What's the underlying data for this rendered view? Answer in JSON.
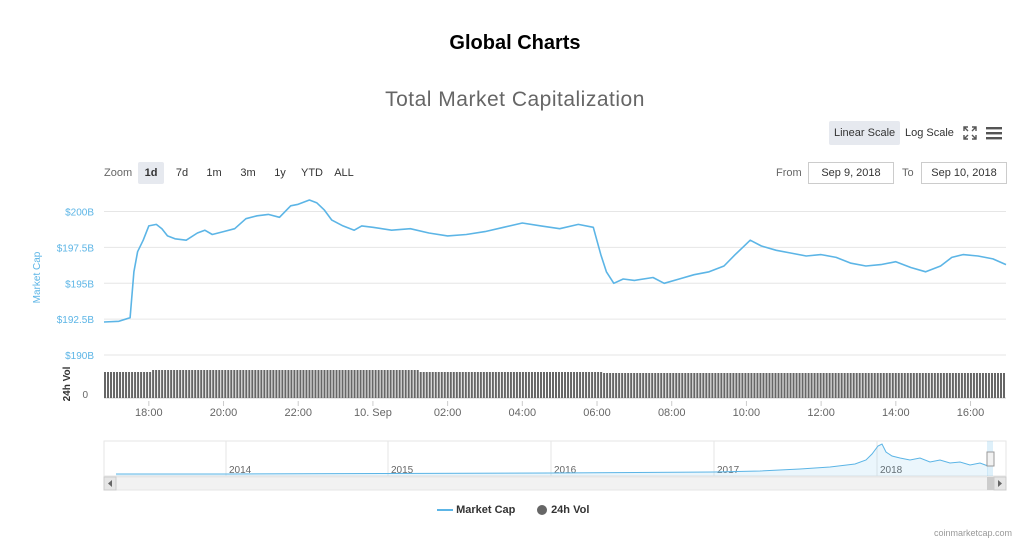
{
  "page_title": "Global Charts",
  "chart_title": "Total Market Capitalization",
  "scale": {
    "linear_label": "Linear Scale",
    "log_label": "Log Scale"
  },
  "zoom": {
    "label": "Zoom",
    "buttons": [
      {
        "label": "1d",
        "active": true
      },
      {
        "label": "7d",
        "active": false
      },
      {
        "label": "1m",
        "active": false
      },
      {
        "label": "3m",
        "active": false
      },
      {
        "label": "1y",
        "active": false
      },
      {
        "label": "YTD",
        "active": false
      },
      {
        "label": "ALL",
        "active": false
      }
    ]
  },
  "range": {
    "from_label": "From",
    "from_value": "Sep 9, 2018",
    "to_label": "To",
    "to_value": "Sep 10, 2018"
  },
  "legend": {
    "market_cap": "Market Cap",
    "volume": "24h Vol"
  },
  "credit": "coinmarketcap.com",
  "colors": {
    "market_cap": "#5cb5e6",
    "volume": "#666666",
    "button_active": "#e6e9ef"
  },
  "icons": {
    "fullscreen": "fullscreen-icon",
    "menu": "menu-icon"
  },
  "chart_data": {
    "type": "line",
    "title": "Total Market Capitalization",
    "ylabel": "Market Cap",
    "volume_label": "24h Vol",
    "y_ticks": [
      190,
      192.5,
      195,
      197.5,
      200
    ],
    "y_tick_labels": [
      "$190B",
      "$192.5B",
      "$195B",
      "$197.5B",
      "$200B"
    ],
    "ylim": [
      190,
      201.5
    ],
    "volume_tick_labels": [
      "0"
    ],
    "x_tick_labels": [
      "18:00",
      "20:00",
      "22:00",
      "10. Sep",
      "02:00",
      "04:00",
      "06:00",
      "08:00",
      "10:00",
      "12:00",
      "14:00",
      "16:00"
    ],
    "x_ticks_hours": [
      18,
      20,
      22,
      24,
      26,
      28,
      30,
      32,
      34,
      36,
      38,
      40
    ],
    "x_range_hours": [
      16.8,
      40.95
    ],
    "series": [
      {
        "name": "Market Cap",
        "x_hours": [
          16.8,
          17.2,
          17.5,
          17.6,
          17.7,
          17.85,
          18.0,
          18.2,
          18.35,
          18.5,
          18.7,
          19.0,
          19.3,
          19.5,
          19.7,
          20.0,
          20.3,
          20.6,
          20.9,
          21.2,
          21.5,
          21.8,
          22.0,
          22.3,
          22.5,
          22.7,
          22.9,
          23.2,
          23.5,
          23.7,
          24.0,
          24.5,
          25.0,
          25.5,
          26.0,
          26.5,
          27.0,
          27.5,
          28.0,
          28.5,
          29.0,
          29.5,
          29.9,
          30.1,
          30.25,
          30.45,
          30.7,
          31.0,
          31.5,
          31.8,
          32.2,
          32.6,
          33.0,
          33.4,
          33.7,
          33.9,
          34.1,
          34.4,
          34.8,
          35.2,
          35.6,
          36.0,
          36.4,
          36.8,
          37.2,
          37.6,
          38.0,
          38.4,
          38.8,
          39.2,
          39.5,
          39.8,
          40.2,
          40.6,
          40.95
        ],
        "values": [
          192.3,
          192.35,
          192.6,
          195.8,
          197.2,
          198.0,
          199.0,
          199.1,
          198.8,
          198.3,
          198.1,
          198.0,
          198.5,
          198.7,
          198.4,
          198.6,
          198.8,
          199.5,
          199.7,
          199.8,
          199.6,
          200.4,
          200.5,
          200.8,
          200.6,
          200.1,
          199.4,
          199.0,
          198.7,
          199.0,
          198.9,
          198.7,
          198.8,
          198.5,
          198.3,
          198.4,
          198.6,
          198.9,
          199.2,
          199.0,
          198.8,
          199.1,
          198.9,
          197.0,
          195.8,
          195.0,
          195.3,
          195.2,
          195.4,
          195.0,
          195.3,
          195.6,
          195.8,
          196.2,
          197.0,
          197.5,
          198.0,
          197.6,
          197.3,
          197.1,
          196.9,
          197.0,
          196.8,
          196.4,
          196.2,
          196.3,
          196.5,
          196.1,
          195.8,
          196.2,
          196.8,
          197.0,
          196.9,
          196.7,
          196.3
        ]
      }
    ],
    "navigator": {
      "x_labels": [
        "2014",
        "2015",
        "2016",
        "2017",
        "2018"
      ]
    }
  }
}
